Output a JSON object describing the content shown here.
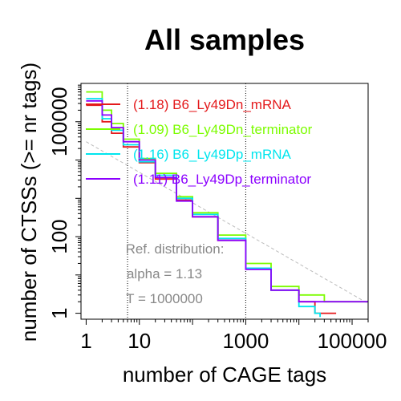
{
  "chart_data": {
    "type": "line",
    "title": "All samples",
    "xlabel": "number of CAGE tags",
    "ylabel": "number of CTSSs (>= nr tags)",
    "x_scale": "log",
    "y_scale": "log",
    "xlim": [
      0.8,
      200000
    ],
    "ylim": [
      0.7,
      1000000
    ],
    "x_ticks": [
      {
        "value": 1,
        "label": "1"
      },
      {
        "value": 10,
        "label": "10"
      },
      {
        "value": 1000,
        "label": "1000"
      },
      {
        "value": 100000,
        "label": "100000"
      }
    ],
    "y_ticks": [
      {
        "value": 1,
        "label": "1"
      },
      {
        "value": 100,
        "label": "100"
      },
      {
        "value": 100000,
        "label": "100000"
      }
    ],
    "vlines": [
      6,
      1000
    ],
    "reference": {
      "x": [
        1,
        1000000
      ],
      "y": [
        30000,
        0.5
      ],
      "lines": [
        "Ref. distribution:",
        "alpha = 1.13",
        "T = 1000000"
      ]
    },
    "legend_position": "top-right",
    "series": [
      {
        "name": "(1.18) B6_Ly49Dn_mRNA",
        "color": "#E41A1C",
        "x": [
          1,
          2,
          3,
          5,
          10,
          20,
          50,
          100,
          300,
          1000,
          3000,
          10000,
          20000,
          30000,
          50000
        ],
        "y": [
          270000,
          100000,
          50000,
          22000,
          8500,
          3200,
          900,
          330,
          80,
          15,
          4,
          2,
          1,
          1,
          1
        ]
      },
      {
        "name": "(1.09) B6_Ly49Dn_terminator",
        "color": "#7CFC00",
        "x": [
          1,
          2,
          3,
          5,
          10,
          20,
          50,
          100,
          300,
          1000,
          3000,
          10000,
          30000,
          50000,
          200000
        ],
        "y": [
          600000,
          200000,
          90000,
          35000,
          11000,
          4500,
          1100,
          420,
          110,
          20,
          5,
          3,
          2,
          2,
          2
        ]
      },
      {
        "name": "(1.16) B6_Ly49Dp_mRNA",
        "color": "#00E5EE",
        "x": [
          1,
          2,
          3,
          5,
          10,
          20,
          50,
          100,
          300,
          1000,
          3000,
          10000,
          20000,
          25000
        ],
        "y": [
          400000,
          120000,
          60000,
          25000,
          9000,
          4000,
          1000,
          380,
          90,
          15,
          4,
          1.5,
          1,
          0.8
        ]
      },
      {
        "name": "(1.11) B6_Ly49Dp_terminator",
        "color": "#8B00FF",
        "x": [
          1,
          2,
          3,
          5,
          10,
          20,
          50,
          100,
          300,
          1000,
          3000,
          10000,
          30000,
          60000,
          200000
        ],
        "y": [
          350000,
          150000,
          70000,
          30000,
          10000,
          3500,
          850,
          330,
          80,
          14,
          4,
          2,
          2,
          2,
          2
        ]
      }
    ]
  }
}
